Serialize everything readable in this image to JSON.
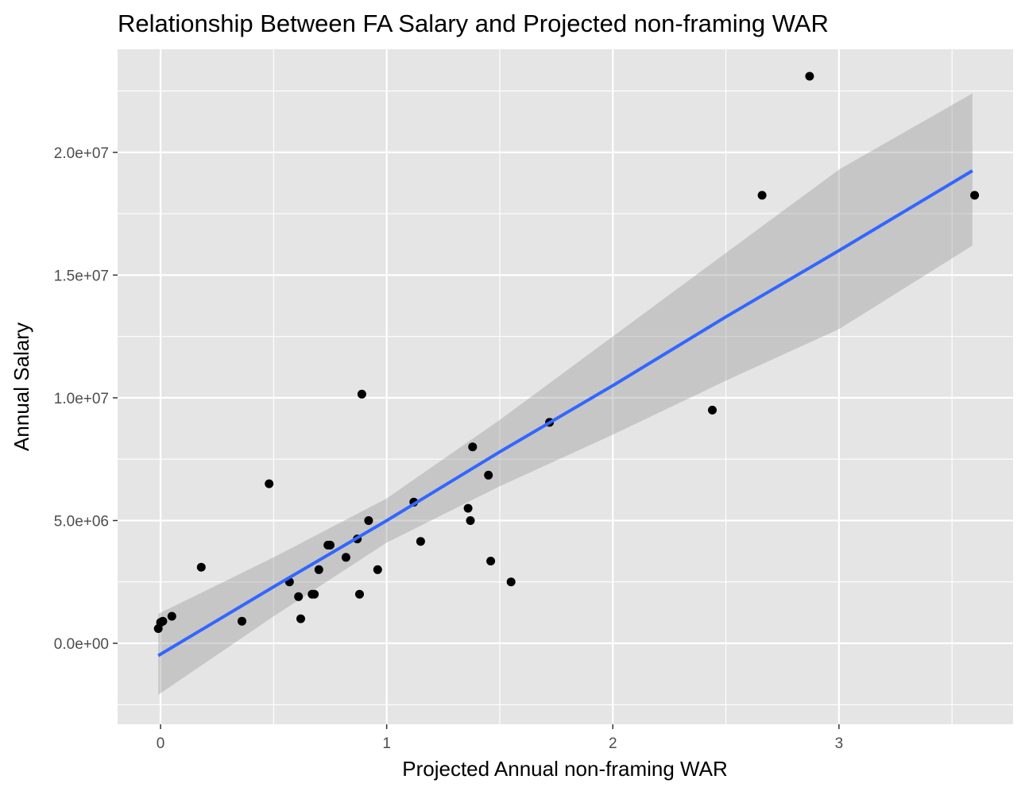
{
  "chart_data": {
    "type": "scatter",
    "title": "Relationship Between FA Salary and Projected non-framing WAR",
    "xlabel": "Projected Annual non-framing WAR",
    "ylabel": "Annual Salary",
    "xlim": [
      -0.19,
      3.77
    ],
    "ylim": [
      -3300000,
      24200000
    ],
    "x_ticks": [
      0,
      1,
      2,
      3
    ],
    "x_tick_labels": [
      "0",
      "1",
      "2",
      "3"
    ],
    "x_minor_ticks": [
      -0.5,
      0.5,
      1.5,
      2.5,
      3.5
    ],
    "y_ticks": [
      0,
      5000000,
      10000000,
      15000000,
      20000000
    ],
    "y_tick_labels": [
      "0.0e+00",
      "5.0e+06",
      "1.0e+07",
      "1.5e+07",
      "2.0e+07"
    ],
    "y_minor_ticks": [
      -2500000,
      2500000,
      7500000,
      12500000,
      17500000,
      22500000
    ],
    "grid": true,
    "legend": "none",
    "colors": {
      "panel": "#e5e5e5",
      "gridline": "#ffffff",
      "points": "#000000",
      "fit_line": "#3366ff",
      "confidence_band": "#999999",
      "tick_text": "#4d4d4d"
    },
    "points": [
      {
        "x": -0.01,
        "y": 600000
      },
      {
        "x": 0.0,
        "y": 850000
      },
      {
        "x": 0.01,
        "y": 900000
      },
      {
        "x": 0.05,
        "y": 1100000
      },
      {
        "x": 0.18,
        "y": 3100000
      },
      {
        "x": 0.36,
        "y": 900000
      },
      {
        "x": 0.48,
        "y": 6500000
      },
      {
        "x": 0.57,
        "y": 2500000
      },
      {
        "x": 0.61,
        "y": 1900000
      },
      {
        "x": 0.62,
        "y": 1000000
      },
      {
        "x": 0.67,
        "y": 2000000
      },
      {
        "x": 0.68,
        "y": 2000000
      },
      {
        "x": 0.7,
        "y": 3000000
      },
      {
        "x": 0.74,
        "y": 4000000
      },
      {
        "x": 0.75,
        "y": 4000000
      },
      {
        "x": 0.82,
        "y": 3500000
      },
      {
        "x": 0.87,
        "y": 4250000
      },
      {
        "x": 0.88,
        "y": 2000000
      },
      {
        "x": 0.89,
        "y": 10150000
      },
      {
        "x": 0.92,
        "y": 5000000
      },
      {
        "x": 0.96,
        "y": 3000000
      },
      {
        "x": 1.12,
        "y": 5750000
      },
      {
        "x": 1.15,
        "y": 4150000
      },
      {
        "x": 1.36,
        "y": 5500000
      },
      {
        "x": 1.37,
        "y": 5000000
      },
      {
        "x": 1.38,
        "y": 8000000
      },
      {
        "x": 1.45,
        "y": 6850000
      },
      {
        "x": 1.46,
        "y": 3350000
      },
      {
        "x": 1.55,
        "y": 2500000
      },
      {
        "x": 1.72,
        "y": 9000000
      },
      {
        "x": 2.44,
        "y": 9500000
      },
      {
        "x": 2.66,
        "y": 18250000
      },
      {
        "x": 2.87,
        "y": 23100000
      },
      {
        "x": 3.6,
        "y": 18250000
      }
    ],
    "fit_line": {
      "x": [
        -0.01,
        0.5,
        1.0,
        1.5,
        2.0,
        2.5,
        3.0,
        3.59
      ],
      "y": [
        -500000,
        2300000,
        5000000,
        7800000,
        10500000,
        13300000,
        16000000,
        19250000
      ]
    },
    "confidence_band": {
      "x": [
        -0.01,
        0.5,
        1.0,
        1.5,
        2.0,
        2.5,
        3.0,
        3.59
      ],
      "upper": [
        1200000,
        3500000,
        5900000,
        9100000,
        12500000,
        15900000,
        19300000,
        22400000
      ],
      "lower": [
        -2100000,
        1100000,
        4100000,
        6400000,
        8500000,
        10700000,
        12800000,
        16200000
      ]
    }
  }
}
